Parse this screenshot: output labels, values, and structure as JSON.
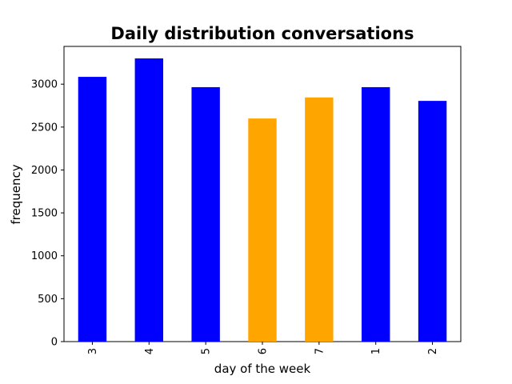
{
  "chart_data": {
    "type": "bar",
    "title": "Daily distribution conversations",
    "xlabel": "day of the week",
    "ylabel": "frequency",
    "categories": [
      "3",
      "4",
      "5",
      "6",
      "7",
      "1",
      "2"
    ],
    "values": [
      3085,
      3300,
      2965,
      2600,
      2845,
      2965,
      2805
    ],
    "bar_colors": [
      "#0000ff",
      "#0000ff",
      "#0000ff",
      "#ffa500",
      "#ffa500",
      "#0000ff",
      "#0000ff"
    ],
    "ylim": [
      0,
      3440
    ],
    "yticks": [
      0,
      500,
      1000,
      1500,
      2000,
      2500,
      3000
    ],
    "grid": false,
    "legend": "none"
  }
}
